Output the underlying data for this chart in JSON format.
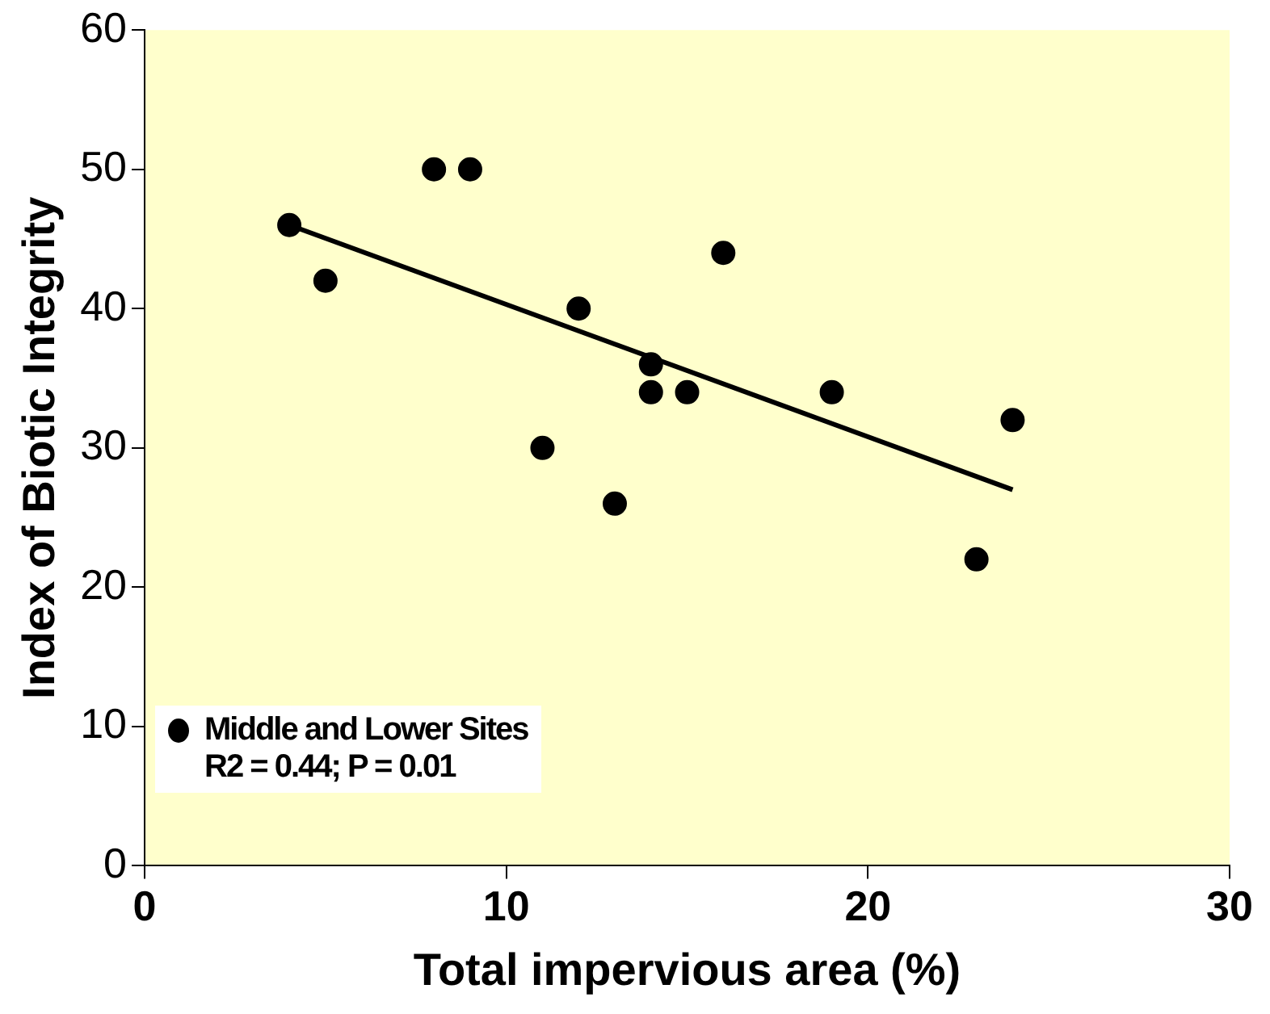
{
  "chart_data": {
    "type": "scatter",
    "xlabel": "Total impervious area (%)",
    "ylabel": "Index of Biotic Integrity",
    "x": [
      4,
      5,
      8,
      9,
      11,
      12,
      13,
      14,
      14,
      15,
      16,
      19,
      23,
      24
    ],
    "series": [
      {
        "name": "Middle and Lower Sites",
        "type": "scatter",
        "color": "#000000",
        "marker": "circle",
        "values": [
          46,
          42,
          50,
          50,
          30,
          40,
          26,
          36,
          34,
          34,
          44,
          34,
          22,
          32
        ]
      },
      {
        "type": "line",
        "color": "#000000",
        "marker": "none",
        "line_style": "solid",
        "x": [
          4,
          24
        ],
        "values": [
          46,
          27
        ]
      }
    ],
    "xlim": [
      0,
      30
    ],
    "xticks": [
      0,
      10,
      20,
      30
    ],
    "ylim": [
      0,
      60
    ],
    "yticks": [
      0,
      10,
      20,
      30,
      40,
      50,
      60
    ],
    "grid": false,
    "legend": "bottom left",
    "annotations": [
      "R2 = 0.44; P = 0.01"
    ]
  }
}
